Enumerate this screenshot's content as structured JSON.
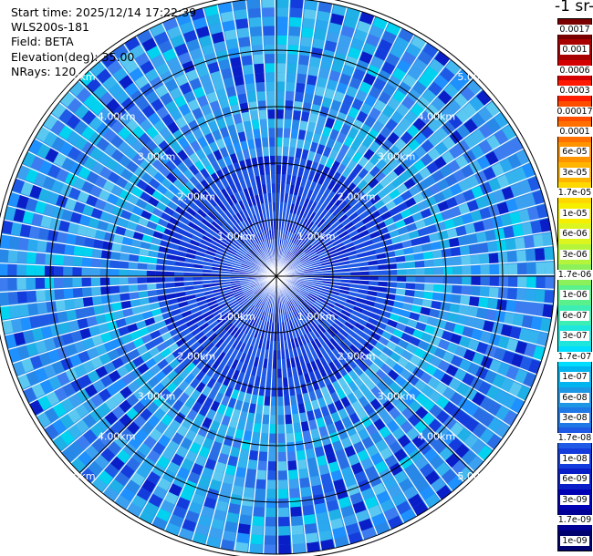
{
  "info": {
    "start_time": "Start time: 2025/12/14 17:22:39",
    "instrument": "WLS200s-181",
    "field": "Field: BETA",
    "elevation": "Elevation(deg): 35.00",
    "nrays": "NRays: 120"
  },
  "colorbar": {
    "title": "-1 sr-",
    "labels": [
      "0.0017",
      "0.001",
      "0.0006",
      "0.0003",
      "0.00017",
      "0.0001",
      "6e-05",
      "3e-05",
      "1.7e-05",
      "1e-05",
      "6e-06",
      "3e-06",
      "1.7e-06",
      "1e-06",
      "6e-07",
      "3e-07",
      "1.7e-07",
      "1e-07",
      "6e-08",
      "3e-08",
      "1.7e-08",
      "1e-08",
      "6e-09",
      "3e-09",
      "1.7e-09",
      "1e-09"
    ],
    "colors": [
      "#7a0000",
      "#a80000",
      "#d40000",
      "#ff1a00",
      "#ff4d00",
      "#ff7000",
      "#ff9300",
      "#ffb400",
      "#ffd800",
      "#f6f000",
      "#dcf51e",
      "#b4f53c",
      "#8cf05a",
      "#5af08c",
      "#3ceeb4",
      "#1ee6dc",
      "#00ddff",
      "#00b4f0",
      "#1e96e6",
      "#1e78e6",
      "#1e5ae6",
      "#143cdc",
      "#0a1ec8",
      "#0000b4",
      "#000096",
      "#00006e"
    ]
  },
  "chart_data": {
    "type": "heatmap",
    "subtype": "polar PPI scan",
    "field": "BETA",
    "elevation_deg": 35.0,
    "n_rays": 120,
    "max_range_km": 5.0,
    "range_ring_labels_km": [
      "1.00km",
      "2.00km",
      "3.00km",
      "4.00km",
      "5.00km"
    ],
    "dominant_value_range": [
      "1e-08",
      "1.7e-07"
    ],
    "near_range_value_range": [
      "1e-09",
      "1.7e-08"
    ],
    "gridlines": "range rings every 1 km, crosshair and diagonal spokes"
  }
}
